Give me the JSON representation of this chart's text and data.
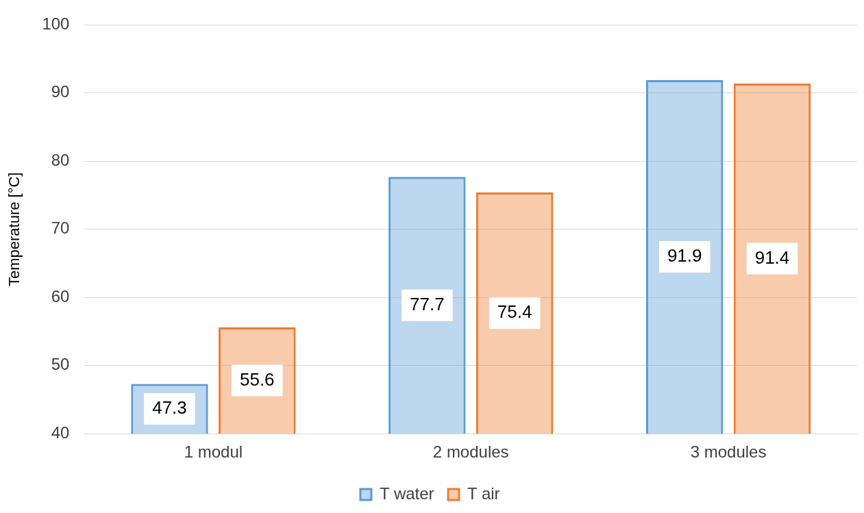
{
  "chart_data": {
    "type": "bar",
    "ylabel": "Temperature [°C]",
    "categories": [
      "1 modul",
      "2 modules",
      "3 modules"
    ],
    "series": [
      {
        "name": "T water",
        "color": "#5b9bd5",
        "values": [
          47.3,
          77.7,
          91.9
        ]
      },
      {
        "name": "T air",
        "color": "#ed7d31",
        "values": [
          55.6,
          75.4,
          91.4
        ]
      }
    ],
    "ylim": [
      40,
      100
    ],
    "yticks": [
      40,
      50,
      60,
      70,
      80,
      90,
      100
    ],
    "grid": "y",
    "legend": "bottom",
    "data_labels": true
  }
}
